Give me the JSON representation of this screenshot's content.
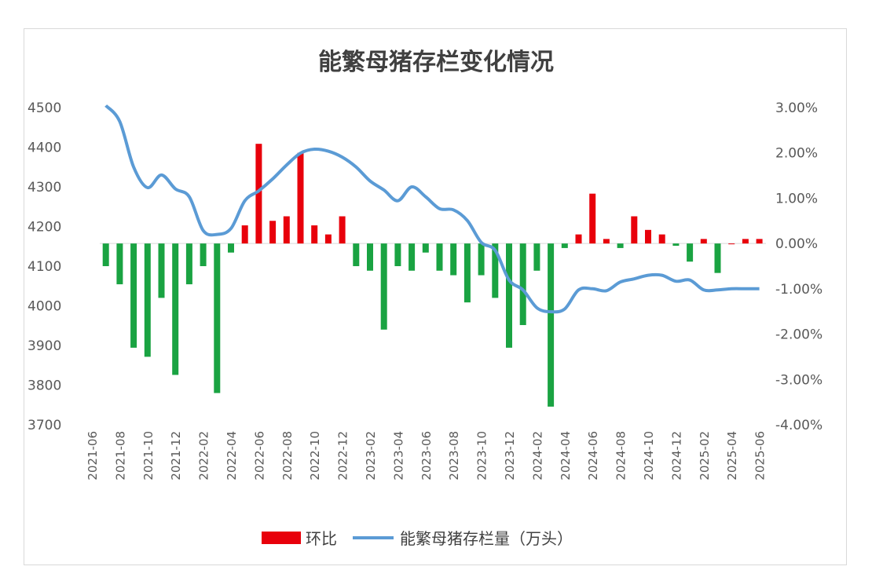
{
  "chart_data": {
    "type": "bar+line",
    "title": "能繁母猪存栏变化情况",
    "x_ticks": [
      "2021-06",
      "2021-08",
      "2021-10",
      "2021-12",
      "2022-02",
      "2022-04",
      "2022-06",
      "2022-08",
      "2022-10",
      "2022-12",
      "2023-02",
      "2023-04",
      "2023-06",
      "2023-08",
      "2023-10",
      "2023-12",
      "2024-02",
      "2024-04",
      "2024-06",
      "2024-08",
      "2024-10",
      "2024-12",
      "2025-02",
      "2025-04",
      "2025-06"
    ],
    "y_left": {
      "min": 3700,
      "max": 4500,
      "ticks": [
        "4500",
        "4400",
        "4300",
        "4200",
        "4100",
        "4000",
        "3900",
        "3800",
        "3700"
      ]
    },
    "y_right": {
      "min": -4.0,
      "max": 3.0,
      "ticks": [
        "3.00%",
        "2.00%",
        "1.00%",
        "0.00%",
        "-1.00%",
        "-2.00%",
        "-3.00%",
        "-4.00%"
      ]
    },
    "series": [
      {
        "name": "环比",
        "kind": "bar",
        "axis": "right",
        "positive_color": "#e8000b",
        "negative_color": "#1aa342",
        "x": [
          "2021-07",
          "2021-08",
          "2021-09",
          "2021-10",
          "2021-11",
          "2021-12",
          "2022-01",
          "2022-02",
          "2022-03",
          "2022-04",
          "2022-05",
          "2022-06",
          "2022-07",
          "2022-08",
          "2022-09",
          "2022-10",
          "2022-11",
          "2022-12",
          "2023-01",
          "2023-02",
          "2023-03",
          "2023-04",
          "2023-05",
          "2023-06",
          "2023-07",
          "2023-08",
          "2023-09",
          "2023-10",
          "2023-11",
          "2023-12",
          "2024-01",
          "2024-02",
          "2024-03",
          "2024-04",
          "2024-05",
          "2024-06",
          "2024-07",
          "2024-08",
          "2024-09",
          "2024-10",
          "2024-11",
          "2024-12",
          "2025-01",
          "2025-02",
          "2025-03",
          "2025-04",
          "2025-05",
          "2025-06"
        ],
        "values": [
          -0.5,
          -0.9,
          -2.3,
          -2.5,
          -1.2,
          -2.9,
          -0.9,
          -0.5,
          -3.3,
          -0.2,
          0.4,
          2.2,
          0.5,
          0.6,
          2.0,
          0.4,
          0.2,
          0.6,
          -0.5,
          -0.6,
          -1.9,
          -0.5,
          -0.6,
          -0.2,
          -0.6,
          -0.7,
          -1.3,
          -0.7,
          -1.2,
          -2.3,
          -1.8,
          -0.6,
          -3.6,
          -0.1,
          0.2,
          1.1,
          0.1,
          -0.1,
          0.6,
          0.3,
          0.2,
          -0.05,
          -0.4,
          0.1,
          -0.65,
          0.0,
          0.1,
          0.1
        ]
      },
      {
        "name": "能繁母猪存栏量（万头）",
        "kind": "line",
        "axis": "left",
        "color": "#5b9bd5",
        "x": [
          "2021-07",
          "2021-08",
          "2021-09",
          "2021-10",
          "2021-11",
          "2021-12",
          "2022-01",
          "2022-02",
          "2022-03",
          "2022-04",
          "2022-05",
          "2022-06",
          "2022-07",
          "2022-08",
          "2022-09",
          "2022-10",
          "2022-11",
          "2022-12",
          "2023-01",
          "2023-02",
          "2023-03",
          "2023-04",
          "2023-05",
          "2023-06",
          "2023-07",
          "2023-08",
          "2023-09",
          "2023-10",
          "2023-11",
          "2023-12",
          "2024-01",
          "2024-02",
          "2024-03",
          "2024-04",
          "2024-05",
          "2024-06",
          "2024-07",
          "2024-08",
          "2024-09",
          "2024-10",
          "2024-11",
          "2024-12",
          "2025-01",
          "2025-02",
          "2025-03",
          "2025-04",
          "2025-05",
          "2025-06"
        ],
        "values": [
          4505,
          4465,
          4350,
          4298,
          4330,
          4295,
          4275,
          4190,
          4180,
          4195,
          4265,
          4290,
          4320,
          4355,
          4385,
          4395,
          4390,
          4375,
          4350,
          4315,
          4292,
          4265,
          4300,
          4275,
          4245,
          4242,
          4215,
          4160,
          4140,
          4065,
          4040,
          3995,
          3985,
          3992,
          4040,
          4043,
          4038,
          4060,
          4068,
          4077,
          4077,
          4062,
          4065,
          4040,
          4040,
          4043,
          4043,
          4043
        ]
      }
    ],
    "legend": {
      "position": "bottom",
      "entries": [
        "环比",
        "能繁母猪存栏量（万头）"
      ]
    }
  }
}
